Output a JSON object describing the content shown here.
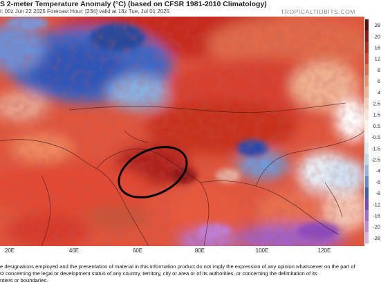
{
  "header": {
    "title": "S 2-meter Temperature Anomaly (°C) (based on CFSR 1981-2010 Climatology)",
    "subtitle": "t: 00z Jun 22 2025   Forecast Hour: [234]   valid at 18z Tue, Jul 01 2025",
    "brand": "TROPICALTIDBITS.COM"
  },
  "colorbar": {
    "labels": [
      "28",
      "20",
      "16",
      "12",
      "8",
      "6",
      "4",
      "2.5",
      "1.5",
      "0.5",
      "-0.5",
      "-1.5",
      "-2.5",
      "-4",
      "-6",
      "-8",
      "-12",
      "-16",
      "-20",
      "-28"
    ]
  },
  "xaxis": {
    "labels": [
      "20E",
      "40E",
      "60E",
      "80E",
      "100E",
      "120E"
    ]
  },
  "annotation": {
    "shape": "ellipse",
    "color": "#000000"
  },
  "disclaimer": {
    "lines": [
      "e designations employed and the presentation of material in this information product do not imply the expression of any opinion whatsoever on the part of",
      "O concerning the legal or development status of any country, territory, city or area or of its authorities, or concerning the delimitation of its",
      "ntiers or boundaries."
    ]
  }
}
